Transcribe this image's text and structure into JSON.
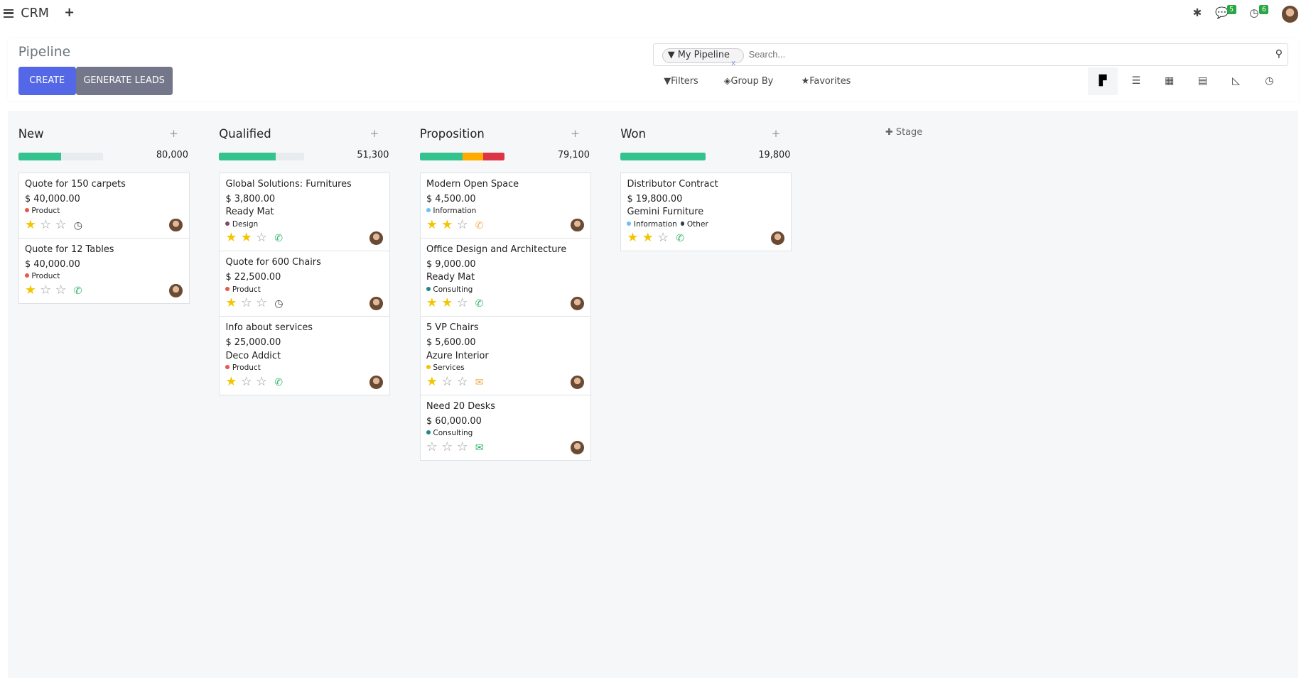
{
  "topbar": {
    "app": "CRM",
    "messages_count": "5",
    "activities_count": "6"
  },
  "control": {
    "title": "Pipeline",
    "create": "CREATE",
    "generate": "GENERATE LEADS",
    "facet": "My Pipeline",
    "search_placeholder": "Search...",
    "filters": "Filters",
    "group_by": "Group By",
    "favorites": "Favorites",
    "views": [
      "kanban",
      "list",
      "calendar",
      "pivot",
      "graph",
      "activity"
    ],
    "active_view": "kanban"
  },
  "add_stage": "Stage",
  "colors": {
    "green": "#34c38f",
    "orange": "#ffac00",
    "red": "#dc3545",
    "primary": "#5468e7",
    "secondary": "#747789"
  },
  "columns": [
    {
      "name": "New",
      "total": "80,000",
      "bar": [
        {
          "pct": 50,
          "color": "#34c38f"
        }
      ],
      "cards": [
        {
          "name": "Quote for 150 carpets",
          "amount": "$ 40,000.00",
          "customer": "",
          "tags": [
            {
              "label": "Product",
              "color": "#e8574a"
            }
          ],
          "stars": 1,
          "activity": "clock"
        },
        {
          "name": "Quote for 12 Tables",
          "amount": "$ 40,000.00",
          "customer": "",
          "tags": [
            {
              "label": "Product",
              "color": "#e8574a"
            }
          ],
          "stars": 1,
          "activity": "phone"
        }
      ]
    },
    {
      "name": "Qualified",
      "total": "51,300",
      "bar": [
        {
          "pct": 67,
          "color": "#34c38f"
        }
      ],
      "cards": [
        {
          "name": "Global Solutions: Furnitures",
          "amount": "$ 3,800.00",
          "customer": "Ready Mat",
          "tags": [
            {
              "label": "Design",
              "color": "#7c4a6b"
            }
          ],
          "stars": 2,
          "activity": "phone"
        },
        {
          "name": "Quote for 600 Chairs",
          "amount": "$ 22,500.00",
          "customer": "",
          "tags": [
            {
              "label": "Product",
              "color": "#e8574a"
            }
          ],
          "stars": 1,
          "activity": "clock"
        },
        {
          "name": "Info about services",
          "amount": "$ 25,000.00",
          "customer": "Deco Addict",
          "tags": [
            {
              "label": "Product",
              "color": "#e8574a"
            }
          ],
          "stars": 1,
          "activity": "phone"
        }
      ]
    },
    {
      "name": "Proposition",
      "total": "79,100",
      "bar": [
        {
          "pct": 50,
          "color": "#34c38f"
        },
        {
          "pct": 25,
          "color": "#ffac00"
        },
        {
          "pct": 25,
          "color": "#dc3545"
        }
      ],
      "cards": [
        {
          "name": "Modern Open Space",
          "amount": "$ 4,500.00",
          "customer": "",
          "tags": [
            {
              "label": "Information",
              "color": "#6cc1ed"
            }
          ],
          "stars": 2,
          "activity": "phone-orange"
        },
        {
          "name": "Office Design and Architecture",
          "amount": "$ 9,000.00",
          "customer": "Ready Mat",
          "tags": [
            {
              "label": "Consulting",
              "color": "#1d8a8a"
            }
          ],
          "stars": 2,
          "activity": "phone"
        },
        {
          "name": "5 VP Chairs",
          "amount": "$ 5,600.00",
          "customer": "Azure Interior",
          "tags": [
            {
              "label": "Services",
              "color": "#f4c20d"
            }
          ],
          "stars": 1,
          "activity": "mail-orange"
        },
        {
          "name": "Need 20 Desks",
          "amount": "$ 60,000.00",
          "customer": "",
          "tags": [
            {
              "label": "Consulting",
              "color": "#1d8a8a"
            }
          ],
          "stars": 0,
          "activity": "mail"
        }
      ]
    },
    {
      "name": "Won",
      "total": "19,800",
      "bar": [
        {
          "pct": 100,
          "color": "#34c38f"
        }
      ],
      "cards": [
        {
          "name": "Distributor Contract",
          "amount": "$ 19,800.00",
          "customer": "Gemini Furniture",
          "tags": [
            {
              "label": "Information",
              "color": "#6cc1ed"
            },
            {
              "label": "Other",
              "color": "#2c3e5a"
            }
          ],
          "stars": 2,
          "activity": "phone"
        }
      ]
    }
  ]
}
